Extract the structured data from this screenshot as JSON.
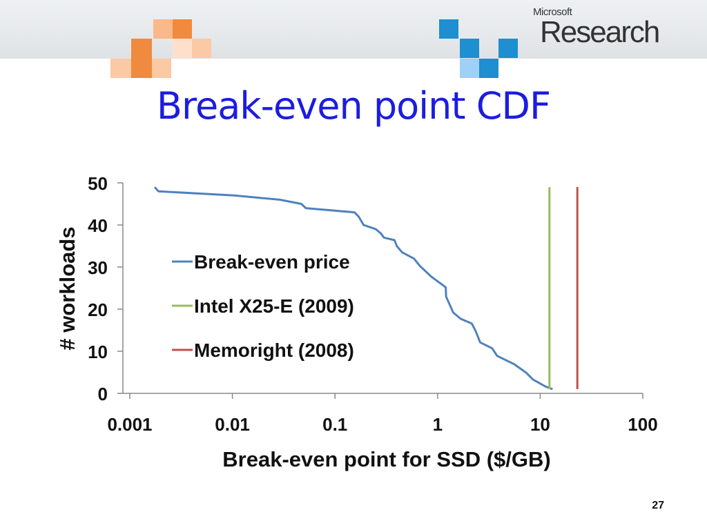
{
  "slide": {
    "title": "Break-even point CDF",
    "page_number": "27",
    "logo": {
      "line1": "Microsoft",
      "line2": "Research"
    }
  },
  "colors": {
    "title": "#1c1ce0",
    "break_even": "#4f81bd",
    "intel": "#9bbb59",
    "memoright": "#c0504d"
  },
  "chart_data": {
    "type": "line",
    "title": "",
    "xlabel": "Break-even point for SSD ($/GB)",
    "ylabel": "# workloads",
    "x_scale": "log",
    "xlim": [
      0.001,
      100
    ],
    "ylim": [
      0,
      50
    ],
    "x_ticks": [
      "0.001",
      "0.01",
      "0.1",
      "1",
      "10",
      "100"
    ],
    "y_ticks": [
      "0",
      "10",
      "20",
      "30",
      "40",
      "50"
    ],
    "grid": false,
    "legend": "inside-left",
    "series": [
      {
        "name": "Break-even price",
        "color": "#4f81bd",
        "x": [
          0.00175,
          0.0019,
          0.0105,
          0.029,
          0.047,
          0.052,
          0.155,
          0.17,
          0.19,
          0.25,
          0.28,
          0.3,
          0.38,
          0.4,
          0.45,
          0.59,
          0.67,
          0.87,
          1.2,
          1.21,
          1.42,
          1.68,
          2.15,
          2.33,
          2.6,
          3.4,
          3.8,
          5.6,
          7.3,
          8.5,
          11.3,
          13.2
        ],
        "y": [
          49,
          48,
          47,
          46,
          45,
          44,
          43,
          42,
          40,
          39,
          38,
          37,
          36.4,
          35,
          33.5,
          32,
          30.3,
          27.7,
          25.2,
          23,
          19.2,
          17.7,
          16.6,
          15,
          12.1,
          10.7,
          8.9,
          6.9,
          4.9,
          3.3,
          1.6,
          1
        ]
      },
      {
        "name": "Intel X25-E (2009)",
        "color": "#9bbb59",
        "x": [
          12.3,
          12.3
        ],
        "y": [
          1,
          49
        ]
      },
      {
        "name": "Memoright (2008)",
        "color": "#c0504d",
        "x": [
          23,
          23
        ],
        "y": [
          1,
          49
        ]
      }
    ]
  }
}
